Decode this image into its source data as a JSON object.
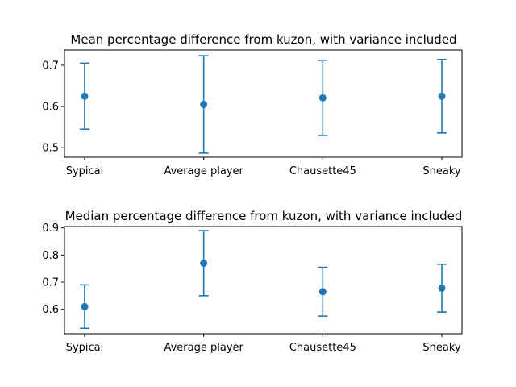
{
  "colors": {
    "series": "#1f77b4",
    "axis": "#000000",
    "background": "#ffffff"
  },
  "chart_data": [
    {
      "type": "errorbar",
      "title": "Mean percentage difference from kuzon, with variance included",
      "xlabel": "",
      "ylabel": "",
      "categories": [
        "Sypical",
        "Average player",
        "Chausette45",
        "Sneaky"
      ],
      "values": [
        0.625,
        0.605,
        0.621,
        0.625
      ],
      "errors": [
        0.08,
        0.118,
        0.091,
        0.089
      ],
      "ylim": [
        0.477,
        0.737
      ],
      "yticks": [
        0.5,
        0.6,
        0.7
      ],
      "ytick_labels": [
        "0.5",
        "0.6",
        "0.7"
      ],
      "grid": false,
      "legend": "none"
    },
    {
      "type": "errorbar",
      "title": "Median percentage difference from kuzon, with variance included",
      "xlabel": "",
      "ylabel": "",
      "categories": [
        "Sypical",
        "Average player",
        "Chausette45",
        "Sneaky"
      ],
      "values": [
        0.61,
        0.77,
        0.665,
        0.678
      ],
      "errors": [
        0.08,
        0.12,
        0.09,
        0.088
      ],
      "ylim": [
        0.51,
        0.905
      ],
      "yticks": [
        0.6,
        0.7,
        0.8,
        0.9
      ],
      "ytick_labels": [
        "0.6",
        "0.7",
        "0.8",
        "0.9"
      ],
      "grid": false,
      "legend": "none"
    }
  ]
}
